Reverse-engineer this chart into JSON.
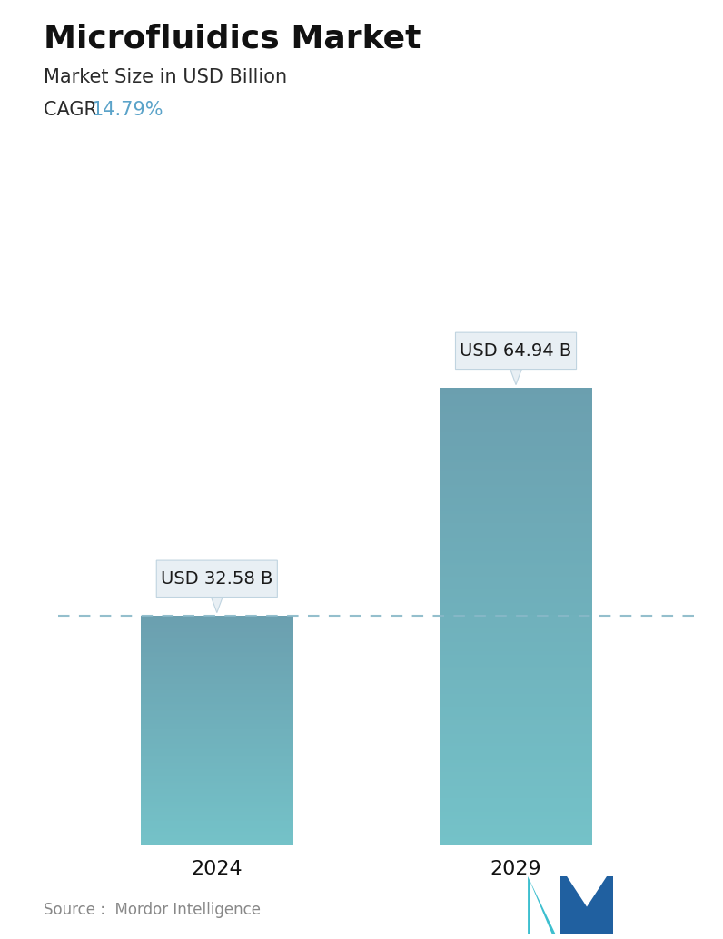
{
  "title": "Microfluidics Market",
  "subtitle": "Market Size in USD Billion",
  "cagr_label": "CAGR  ",
  "cagr_value": "14.79%",
  "cagr_color": "#5ba3c9",
  "categories": [
    "2024",
    "2029"
  ],
  "values": [
    32.58,
    64.94
  ],
  "value_labels": [
    "USD 32.58 B",
    "USD 64.94 B"
  ],
  "bar_color_top": "#6b9faf",
  "bar_color_bottom": "#74c2c8",
  "dashed_line_color": "#88b8c8",
  "source_text": "Source :  Mordor Intelligence",
  "background_color": "#ffffff",
  "title_fontsize": 26,
  "subtitle_fontsize": 15,
  "cagr_fontsize": 15,
  "tick_fontsize": 16,
  "label_fontsize": 14,
  "source_fontsize": 12,
  "ylim_max": 80
}
